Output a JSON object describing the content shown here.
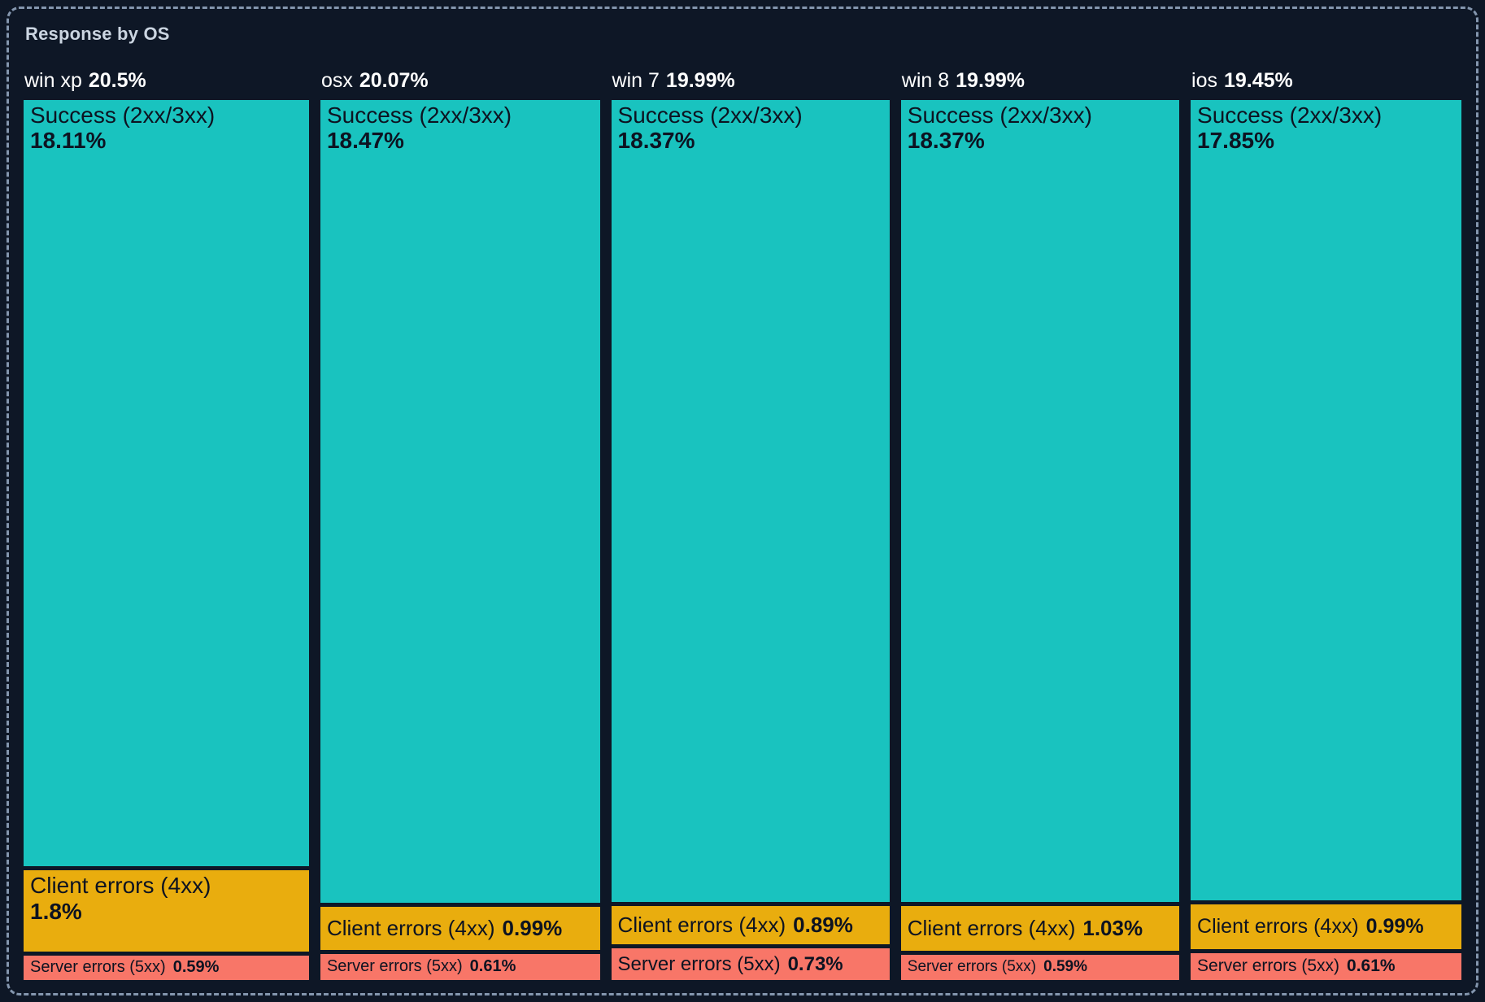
{
  "panel": {
    "title": "Response by OS"
  },
  "colors": {
    "background": "#0e1726",
    "frame_border": "#8496ae",
    "title_text": "#cbd5e1",
    "header_text": "#ffffff",
    "segment_text": "#0d1321",
    "success": "#19c3bf",
    "client_errors": "#e9ad0e",
    "server_errors": "#f87668"
  },
  "chart_data": {
    "type": "treemap",
    "title": "Response by OS",
    "unit": "%",
    "layout": "columns are OS categories sized by total %, segments stacked vertically sized by value",
    "columns": [
      {
        "os": "win xp",
        "total_pct": "20.5%",
        "total_value": 20.5,
        "segments": [
          {
            "label": "Success (2xx/3xx)",
            "pct": "18.11%",
            "value": 18.11
          },
          {
            "label": "Client errors (4xx)",
            "pct": "1.8%",
            "value": 1.8
          },
          {
            "label": "Server errors (5xx)",
            "pct": "0.59%",
            "value": 0.59
          }
        ]
      },
      {
        "os": "osx",
        "total_pct": "20.07%",
        "total_value": 20.07,
        "segments": [
          {
            "label": "Success (2xx/3xx)",
            "pct": "18.47%",
            "value": 18.47
          },
          {
            "label": "Client errors (4xx)",
            "pct": "0.99%",
            "value": 0.99
          },
          {
            "label": "Server errors (5xx)",
            "pct": "0.61%",
            "value": 0.61
          }
        ]
      },
      {
        "os": "win 7",
        "total_pct": "19.99%",
        "total_value": 19.99,
        "segments": [
          {
            "label": "Success (2xx/3xx)",
            "pct": "18.37%",
            "value": 18.37
          },
          {
            "label": "Client errors (4xx)",
            "pct": "0.89%",
            "value": 0.89
          },
          {
            "label": "Server errors (5xx)",
            "pct": "0.73%",
            "value": 0.73
          }
        ]
      },
      {
        "os": "win 8",
        "total_pct": "19.99%",
        "total_value": 19.99,
        "segments": [
          {
            "label": "Success (2xx/3xx)",
            "pct": "18.37%",
            "value": 18.37
          },
          {
            "label": "Client errors (4xx)",
            "pct": "1.03%",
            "value": 1.03
          },
          {
            "label": "Server errors (5xx)",
            "pct": "0.59%",
            "value": 0.59
          }
        ]
      },
      {
        "os": "ios",
        "total_pct": "19.45%",
        "total_value": 19.45,
        "segments": [
          {
            "label": "Success (2xx/3xx)",
            "pct": "17.85%",
            "value": 17.85
          },
          {
            "label": "Client errors (4xx)",
            "pct": "0.99%",
            "value": 0.99
          },
          {
            "label": "Server errors (5xx)",
            "pct": "0.61%",
            "value": 0.61
          }
        ]
      }
    ]
  }
}
